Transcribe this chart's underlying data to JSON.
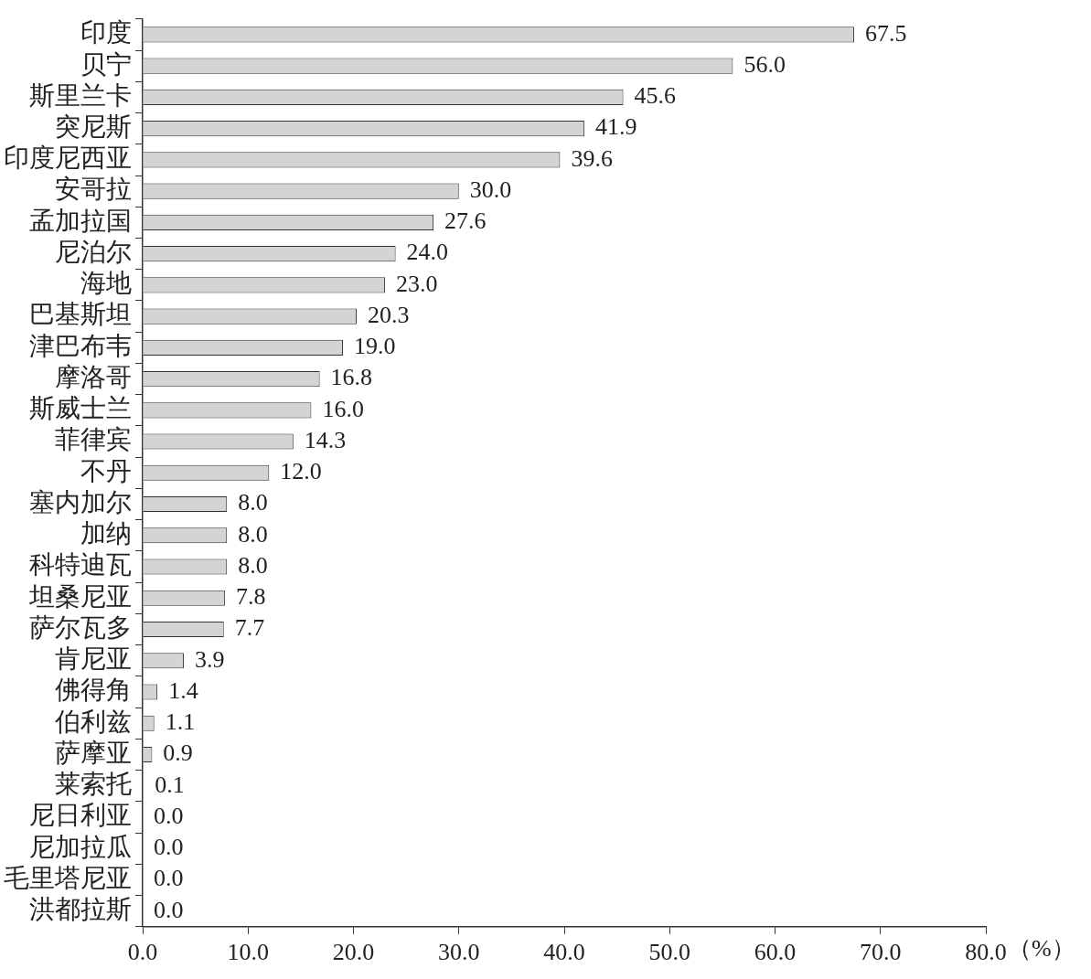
{
  "chart_data": {
    "type": "bar",
    "orientation": "horizontal",
    "xlabel": "（%）",
    "categories": [
      "印度",
      "贝宁",
      "斯里兰卡",
      "突尼斯",
      "印度尼西亚",
      "安哥拉",
      "孟加拉国",
      "尼泊尔",
      "海地",
      "巴基斯坦",
      "津巴布韦",
      "摩洛哥",
      "斯威士兰",
      "菲律宾",
      "不丹",
      "塞内加尔",
      "加纳",
      "科特迪瓦",
      "坦桑尼亚",
      "萨尔瓦多",
      "肯尼亚",
      "佛得角",
      "伯利兹",
      "萨摩亚",
      "莱索托",
      "尼日利亚",
      "尼加拉瓜",
      "毛里塔尼亚",
      "洪都拉斯"
    ],
    "values": [
      67.5,
      56.0,
      45.6,
      41.9,
      39.6,
      30.0,
      27.6,
      24.0,
      23.0,
      20.3,
      19.0,
      16.8,
      16.0,
      14.3,
      12.0,
      8.0,
      8.0,
      8.0,
      7.8,
      7.7,
      3.9,
      1.4,
      1.1,
      0.9,
      0.1,
      0.0,
      0.0,
      0.0,
      0.0
    ],
    "value_labels": [
      "67.5",
      "56.0",
      "45.6",
      "41.9",
      "39.6",
      "30.0",
      "27.6",
      "24.0",
      "23.0",
      "20.3",
      "19.0",
      "16.8",
      "16.0",
      "14.3",
      "12.0",
      "8.0",
      "8.0",
      "8.0",
      "7.8",
      "7.7",
      "3.9",
      "1.4",
      "1.1",
      "0.9",
      "0.1",
      "0.0",
      "0.0",
      "0.0",
      "0.0"
    ],
    "color": "#d4d4d4",
    "xlim": [
      0,
      80
    ],
    "xticks": [
      {
        "value": 0,
        "label": "0.0"
      },
      {
        "value": 10,
        "label": "10.0"
      },
      {
        "value": 20,
        "label": "20.0"
      },
      {
        "value": 30,
        "label": "30.0"
      },
      {
        "value": 40,
        "label": "40.0"
      },
      {
        "value": 50,
        "label": "50.0"
      },
      {
        "value": 60,
        "label": "60.0"
      },
      {
        "value": 70,
        "label": "70.0"
      },
      {
        "value": 80,
        "label": "80.0"
      }
    ]
  }
}
